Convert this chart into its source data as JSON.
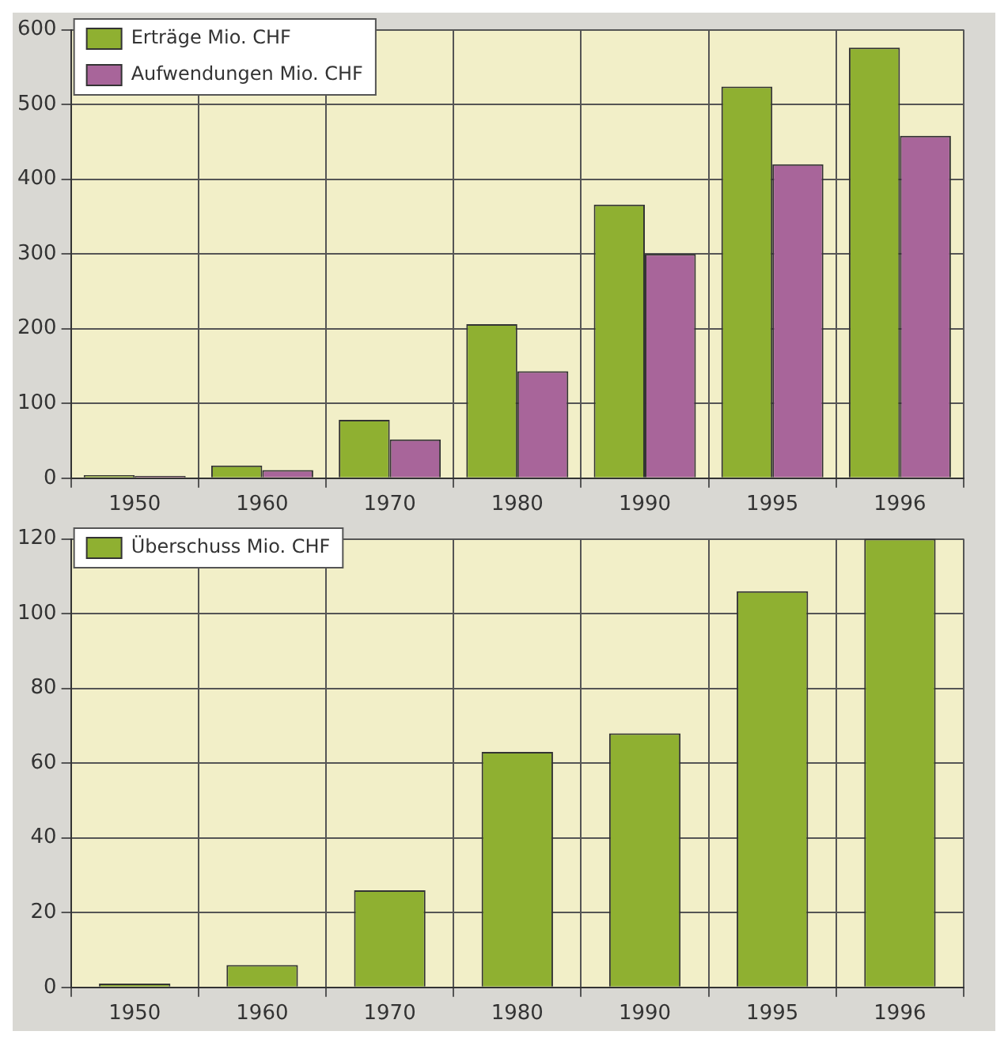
{
  "chart_data": [
    {
      "type": "bar",
      "categories": [
        "1950",
        "1960",
        "1970",
        "1980",
        "1990",
        "1995",
        "1996"
      ],
      "series": [
        {
          "name": "Erträge Mio. CHF",
          "color": "#8fb031",
          "values": [
            4,
            17,
            78,
            206,
            366,
            524,
            576
          ]
        },
        {
          "name": "Aufwendungen Mio. CHF",
          "color": "#a8659a",
          "values": [
            3,
            11,
            52,
            143,
            300,
            420,
            458
          ]
        }
      ],
      "ylim": [
        0,
        600
      ],
      "yticks": [
        0,
        100,
        200,
        300,
        400,
        500,
        600
      ],
      "grid": true,
      "legend": "top left"
    },
    {
      "type": "bar",
      "categories": [
        "1950",
        "1960",
        "1970",
        "1980",
        "1990",
        "1995",
        "1996"
      ],
      "series": [
        {
          "name": "Überschuss Mio. CHF",
          "color": "#8fb031",
          "values": [
            1,
            6,
            26,
            63,
            68,
            106,
            120
          ]
        }
      ],
      "ylim": [
        0,
        120
      ],
      "yticks": [
        0,
        20,
        40,
        60,
        80,
        100,
        120
      ],
      "grid": true,
      "legend": "top left"
    }
  ]
}
